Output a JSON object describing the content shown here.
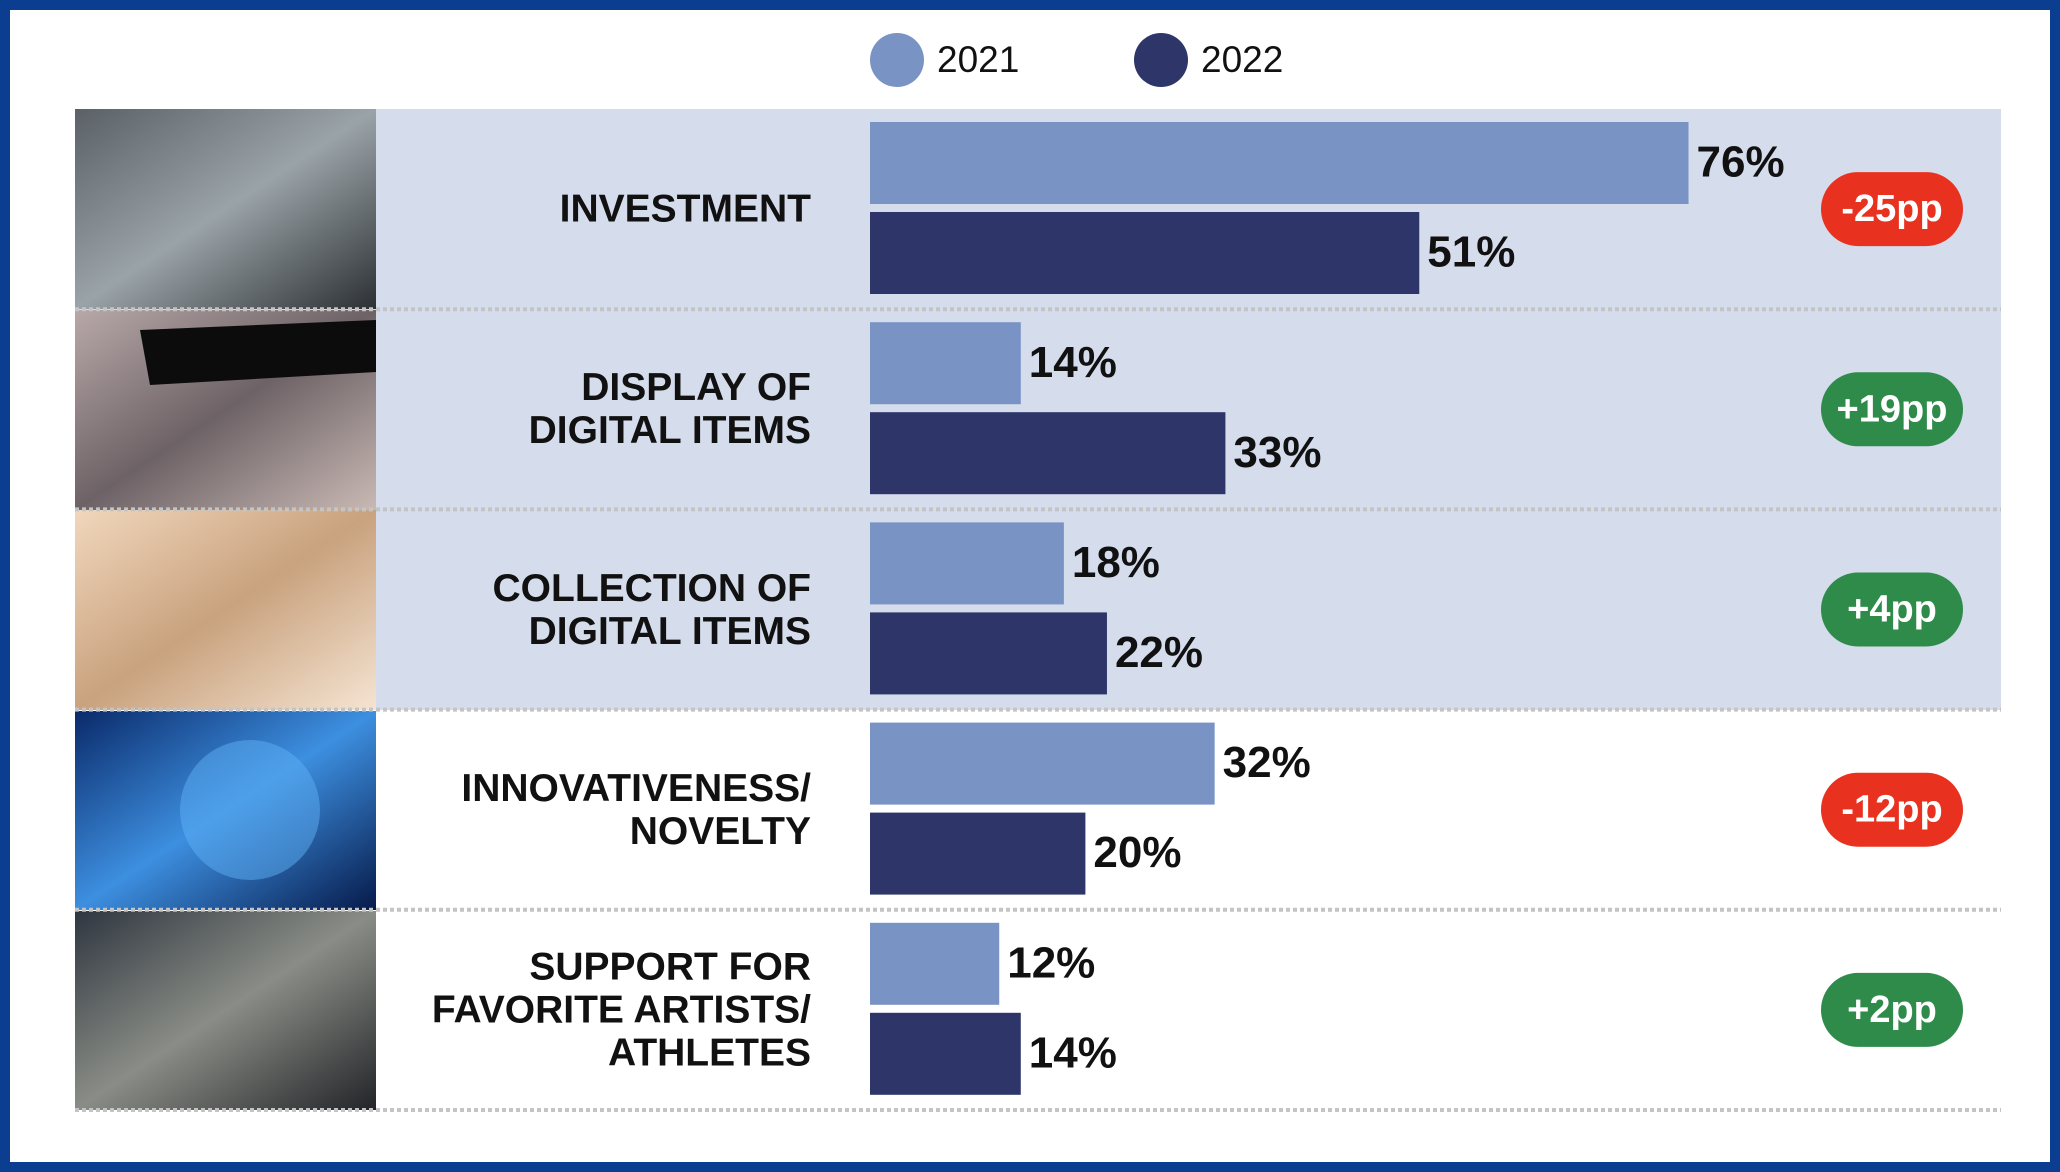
{
  "chart_data": {
    "type": "bar",
    "orientation": "horizontal",
    "categories": [
      "INVESTMENT",
      "DISPLAY OF\nDIGITAL ITEMS",
      "COLLECTION OF\nDIGITAL ITEMS",
      "INNOVATIVENESS/\nNOVELTY",
      "SUPPORT FOR\nFAVORITE ARTISTS/\nATHLETES"
    ],
    "series": [
      {
        "name": "2021",
        "color": "#7893c4",
        "values": [
          76,
          14,
          18,
          32,
          12
        ],
        "value_labels": [
          "76%",
          "14%",
          "18%",
          "32%",
          "12%"
        ]
      },
      {
        "name": "2022",
        "color": "#2d3569",
        "values": [
          51,
          33,
          22,
          20,
          14
        ],
        "value_labels": [
          "51%",
          "33%",
          "22%",
          "20%",
          "14%"
        ]
      }
    ],
    "changes": [
      -25,
      19,
      4,
      -12,
      2
    ],
    "change_labels": [
      "-25pp",
      "+19pp",
      "+4pp",
      "-12pp",
      "+2pp"
    ],
    "positive_color": "#2e8b4a",
    "negative_color": "#e8321f",
    "xlim": [
      0,
      100
    ],
    "legend": "top"
  }
}
